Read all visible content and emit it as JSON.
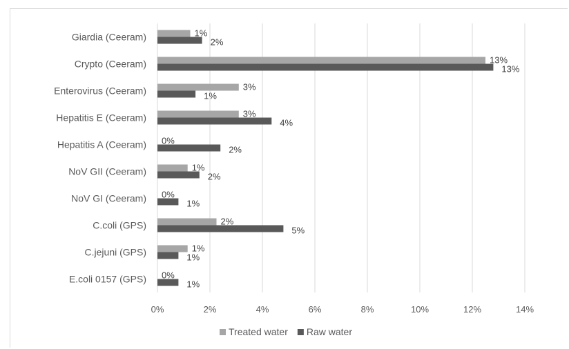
{
  "chart_data": {
    "type": "bar",
    "orientation": "horizontal",
    "categories": [
      "Giardia (Ceeram)",
      "Crypto (Ceeram)",
      "Enterovirus (Ceeram)",
      "Hepatitis E (Ceeram)",
      "Hepatitis A (Ceeram)",
      "NoV GII (Ceeram)",
      "NoV GI (Ceeram)",
      "C.coli (GPS)",
      "C.jejuni (GPS)",
      "E.coli 0157 (GPS)"
    ],
    "series": [
      {
        "name": "Treated water",
        "color": "#a6a6a6",
        "values": [
          1.25,
          12.5,
          3.1,
          3.1,
          0,
          1.15,
          0,
          2.25,
          1.15,
          0
        ],
        "labels": [
          "1%",
          "13%",
          "3%",
          "3%",
          "0%",
          "1%",
          "0%",
          "2%",
          "1%",
          "0%"
        ]
      },
      {
        "name": "Raw water",
        "color": "#595959",
        "values": [
          1.7,
          12.8,
          1.45,
          4.35,
          2.4,
          1.6,
          0.8,
          4.8,
          0.8,
          0.8
        ],
        "labels": [
          "2%",
          "13%",
          "1%",
          "4%",
          "2%",
          "2%",
          "1%",
          "5%",
          "1%",
          "1%"
        ]
      }
    ],
    "x_ticks": [
      "0%",
      "2%",
      "4%",
      "6%",
      "8%",
      "10%",
      "12%",
      "14%"
    ],
    "xlim": [
      0,
      14
    ],
    "grid": "vertical",
    "legend": "bottom",
    "title": "",
    "xlabel": "",
    "ylabel": ""
  }
}
